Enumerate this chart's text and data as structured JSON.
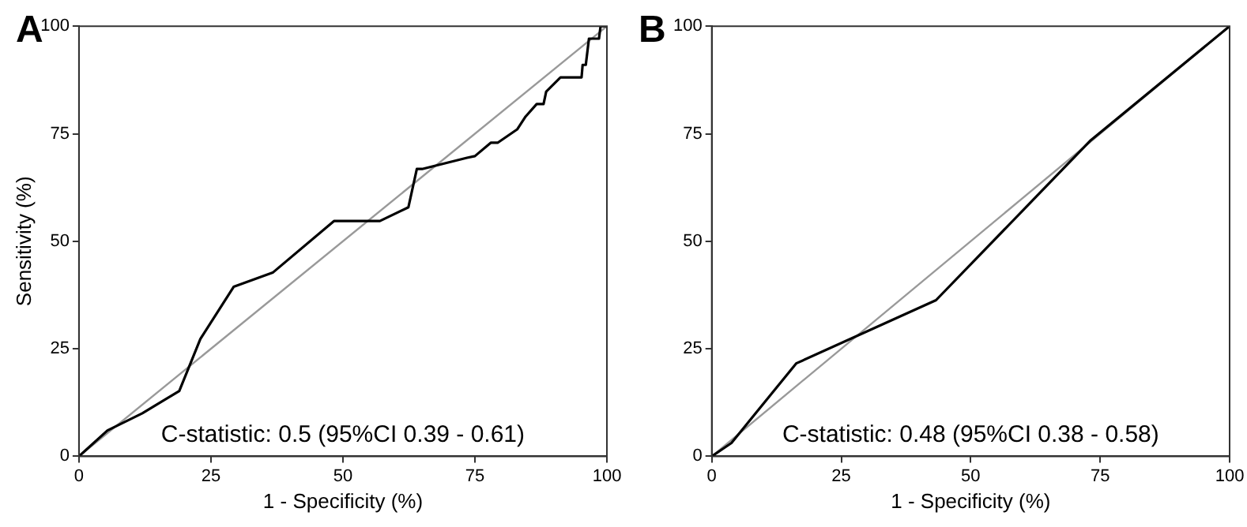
{
  "chart_data": [
    {
      "type": "line",
      "title": "A",
      "xlabel": "1 - Specificity (%)",
      "ylabel": "Sensitivity (%)",
      "xlim": [
        0,
        100
      ],
      "ylim": [
        0,
        100
      ],
      "xticks": [
        0,
        25,
        50,
        75,
        100
      ],
      "yticks": [
        0,
        25,
        50,
        75,
        100
      ],
      "grid": false,
      "marker": "none",
      "annotations": [
        "C-statistic: 0.5 (95%CI 0.39 - 0.61)"
      ],
      "series": [
        {
          "color": "#000000",
          "x": [
            0,
            5.4,
            12,
            19,
            23,
            29.3,
            36.7,
            48.3,
            57,
            62.4,
            64,
            65,
            73.5,
            75,
            78,
            79.3,
            83,
            84.6,
            86.7,
            88,
            88.5,
            91.2,
            95.2,
            95.4,
            96,
            96.6,
            98.5,
            98.8,
            100
          ],
          "values": [
            0,
            6,
            10,
            15.2,
            27.3,
            39.4,
            42.7,
            54.7,
            54.7,
            57.9,
            66.8,
            66.8,
            69.4,
            69.8,
            72.9,
            72.9,
            76,
            79,
            81.9,
            81.9,
            84.8,
            88.1,
            88.1,
            91,
            91,
            97.1,
            97.1,
            100,
            100
          ]
        },
        {
          "color": "#999999",
          "x": [
            0,
            100
          ],
          "values": [
            0,
            100
          ]
        }
      ]
    },
    {
      "type": "line",
      "title": "B",
      "xlabel": "1 - Specificity (%)",
      "xlim": [
        0,
        100
      ],
      "ylim": [
        0,
        100
      ],
      "xticks": [
        0,
        25,
        50,
        75,
        100
      ],
      "yticks": [
        0,
        25,
        50,
        75,
        100
      ],
      "grid": false,
      "marker": "none",
      "annotations": [
        "C-statistic: 0.48 (95%CI 0.38 - 0.58)"
      ],
      "series": [
        {
          "color": "#000000",
          "x": [
            0,
            3.8,
            16.3,
            43.3,
            73.2,
            100
          ],
          "values": [
            0,
            3.1,
            21.6,
            36.3,
            73.5,
            100
          ]
        },
        {
          "color": "#999999",
          "x": [
            0,
            100
          ],
          "values": [
            0,
            100
          ]
        }
      ]
    }
  ]
}
